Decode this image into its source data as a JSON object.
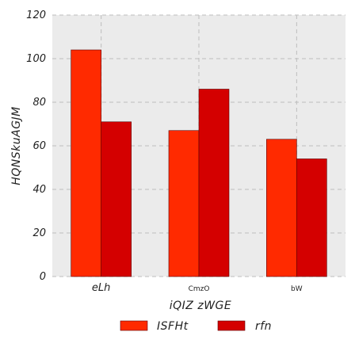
{
  "chart_data": {
    "type": "bar",
    "title": "",
    "xlabel": "iQIZ zWGE",
    "ylabel": "HQNSkuAGJM",
    "categories": [
      "eLh",
      "CmzO",
      "bW"
    ],
    "series": [
      {
        "name": "ISFHt",
        "values": [
          104,
          67,
          63
        ],
        "color": "#ff2a00"
      },
      {
        "name": "rfn",
        "values": [
          71,
          86,
          54
        ],
        "color": "#d40000"
      }
    ],
    "ylim": [
      0,
      120
    ],
    "yticks": [
      0,
      20,
      40,
      60,
      80,
      100,
      120
    ],
    "grid": true,
    "legend_position": "bottom-center",
    "background_color": "#ebebeb",
    "grid_color": "#bdbdbd"
  }
}
